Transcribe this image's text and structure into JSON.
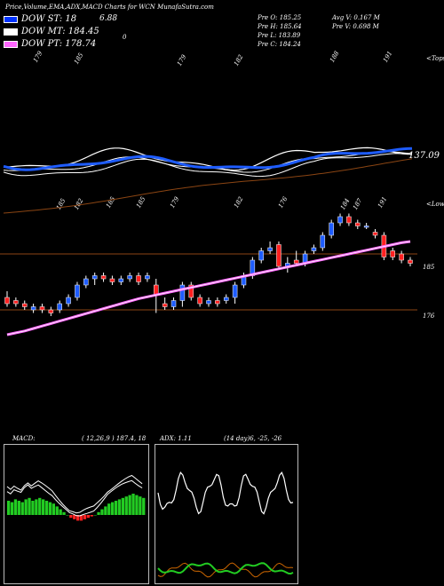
{
  "header": {
    "title": "Price,Volume,EMA,ADX,MACD Charts for WCN  MunafaSutra.com",
    "stats": {
      "pre_o": "Pre  O: 185.25",
      "pre_h": "Pre  H: 185.64",
      "pre_l": "Pre  L: 183.89",
      "pre_c": "Pre  C: 184.24",
      "avg_v": "Avg V: 0.167  M",
      "pre_v": "Pre  V: 0.698  M"
    },
    "top_value": "6.88",
    "top_zero": "0"
  },
  "legend": [
    {
      "label": "DOW  ST: 18",
      "color": "#0033ff"
    },
    {
      "label": "DOW  MT: 184.45",
      "color": "#ffffff"
    },
    {
      "label": "DOW  PT: 178.74",
      "color": "#ff66ff"
    }
  ],
  "upper": {
    "labels_top": [
      "179",
      "185",
      "179",
      "182",
      "188",
      "191"
    ],
    "labels_mid": [
      "185",
      "182",
      "185",
      "185",
      "179",
      "182",
      "176",
      "184",
      "187",
      "191"
    ],
    "right_labels": {
      "top": "<Tops",
      "value": "137.09",
      "lower": "<Lows"
    },
    "price_labels": [
      "185",
      "176"
    ]
  },
  "macd": {
    "label": "MACD:",
    "params": "( 12,26,9 )  187.4,  18",
    "bars": [
      10,
      9,
      11,
      10,
      9,
      11,
      12,
      10,
      11,
      12,
      11,
      10,
      9,
      8,
      6,
      4,
      2,
      0,
      -2,
      -3,
      -4,
      -4,
      -3,
      -2,
      -1,
      0,
      2,
      4,
      6,
      8,
      9,
      10,
      11,
      12,
      13,
      14,
      15,
      14,
      13,
      12
    ]
  },
  "adx": {
    "label": "ADX: 1.11",
    "params": "(14  day)6,  -25,  -26"
  },
  "chart_data": [
    {
      "type": "candlestick",
      "title": "Price,Volume,EMA,ADX,MACD Charts for WCN",
      "candles": [
        {
          "o": 178,
          "c": 177,
          "h": 179,
          "l": 176.5
        },
        {
          "o": 177.5,
          "c": 177,
          "h": 178,
          "l": 176.5
        },
        {
          "o": 177,
          "c": 176.5,
          "h": 177.5,
          "l": 176
        },
        {
          "o": 176,
          "c": 176.5,
          "h": 177,
          "l": 175.5
        },
        {
          "o": 176.5,
          "c": 176,
          "h": 177,
          "l": 175.5
        },
        {
          "o": 176,
          "c": 175.5,
          "h": 176.5,
          "l": 175
        },
        {
          "o": 176,
          "c": 177,
          "h": 177.5,
          "l": 175.5
        },
        {
          "o": 177,
          "c": 178,
          "h": 178.5,
          "l": 176.5
        },
        {
          "o": 178,
          "c": 180,
          "h": 180.5,
          "l": 177.5
        },
        {
          "o": 180,
          "c": 181,
          "h": 181.5,
          "l": 179.5
        },
        {
          "o": 181,
          "c": 181.5,
          "h": 182,
          "l": 180
        },
        {
          "o": 181.5,
          "c": 181,
          "h": 182,
          "l": 180.5
        },
        {
          "o": 181,
          "c": 180.5,
          "h": 181.5,
          "l": 180
        },
        {
          "o": 180.5,
          "c": 181,
          "h": 181.5,
          "l": 180
        },
        {
          "o": 181,
          "c": 181.5,
          "h": 182,
          "l": 180.5
        },
        {
          "o": 181.5,
          "c": 180.5,
          "h": 182,
          "l": 180
        },
        {
          "o": 181,
          "c": 181.5,
          "h": 182,
          "l": 180.5
        },
        {
          "o": 180,
          "c": 178.5,
          "h": 181,
          "l": 175.5
        },
        {
          "o": 177,
          "c": 176.5,
          "h": 178,
          "l": 176
        },
        {
          "o": 176.5,
          "c": 177.5,
          "h": 178,
          "l": 176
        },
        {
          "o": 177.5,
          "c": 180,
          "h": 180.5,
          "l": 176.5
        },
        {
          "o": 180,
          "c": 178,
          "h": 180.5,
          "l": 177.5
        },
        {
          "o": 178,
          "c": 177,
          "h": 178.5,
          "l": 176.5
        },
        {
          "o": 177,
          "c": 177.5,
          "h": 178,
          "l": 176.5
        },
        {
          "o": 177.5,
          "c": 177,
          "h": 178,
          "l": 176.5
        },
        {
          "o": 177.5,
          "c": 178,
          "h": 178.5,
          "l": 177
        },
        {
          "o": 178,
          "c": 180,
          "h": 180.5,
          "l": 177
        },
        {
          "o": 180,
          "c": 181.5,
          "h": 182,
          "l": 179.5
        },
        {
          "o": 181.5,
          "c": 184,
          "h": 184.5,
          "l": 181
        },
        {
          "o": 184,
          "c": 185.5,
          "h": 186,
          "l": 183.5
        },
        {
          "o": 185.5,
          "c": 186,
          "h": 187,
          "l": 185
        },
        {
          "o": 186.5,
          "c": 183,
          "h": 187,
          "l": 182.5
        },
        {
          "o": 183,
          "c": 183.5,
          "h": 184.5,
          "l": 182
        },
        {
          "o": 184,
          "c": 183.5,
          "h": 185.5,
          "l": 183
        },
        {
          "o": 183.5,
          "c": 185,
          "h": 185.5,
          "l": 183
        },
        {
          "o": 185.5,
          "c": 186,
          "h": 186.5,
          "l": 185
        },
        {
          "o": 186,
          "c": 188,
          "h": 188.5,
          "l": 185.5
        },
        {
          "o": 188,
          "c": 190,
          "h": 190.5,
          "l": 187.5
        },
        {
          "o": 190,
          "c": 191,
          "h": 191.5,
          "l": 189.5
        },
        {
          "o": 191,
          "c": 190,
          "h": 191.5,
          "l": 189.5
        },
        {
          "o": 190,
          "c": 189.5,
          "h": 190.5,
          "l": 189
        },
        {
          "o": 189.5,
          "c": 189.5,
          "h": 190,
          "l": 189
        },
        {
          "o": 188.5,
          "c": 188,
          "h": 189,
          "l": 187.5
        },
        {
          "o": 188,
          "c": 184.5,
          "h": 188.5,
          "l": 184
        },
        {
          "o": 185.5,
          "c": 184.5,
          "h": 186,
          "l": 184
        },
        {
          "o": 185,
          "c": 184,
          "h": 185.5,
          "l": 183.5
        },
        {
          "o": 184,
          "c": 183.5,
          "h": 184.5,
          "l": 183
        }
      ],
      "ylim": [
        173,
        193
      ],
      "hlines": [
        185,
        176
      ]
    },
    {
      "type": "line",
      "series": [
        {
          "name": "DOW  PT: 178.74",
          "color": "#ff66ff",
          "values": [
            172,
            172.3,
            172.6,
            173,
            173.4,
            173.8,
            174.2,
            174.6,
            175,
            175.4,
            175.8,
            176.2,
            176.6,
            177,
            177.4,
            177.8,
            178.1,
            178.4,
            178.7,
            179,
            179.3,
            179.6,
            179.9,
            180.2,
            180.5,
            180.8,
            181.1,
            181.4,
            181.7,
            182,
            182.3,
            182.6,
            182.9,
            183.2,
            183.5,
            183.8,
            184.1,
            184.4,
            184.7,
            185,
            185.3,
            185.6,
            185.9,
            186.2,
            186.5,
            186.8,
            187
          ]
        }
      ]
    },
    {
      "type": "bar",
      "title": "MACD",
      "values": [
        10,
        9,
        11,
        10,
        9,
        11,
        12,
        10,
        11,
        12,
        11,
        10,
        9,
        8,
        6,
        4,
        2,
        0,
        -2,
        -3,
        -4,
        -4,
        -3,
        -2,
        -1,
        0,
        2,
        4,
        6,
        8,
        9,
        10,
        11,
        12,
        13,
        14,
        15,
        14,
        13,
        12
      ]
    }
  ]
}
